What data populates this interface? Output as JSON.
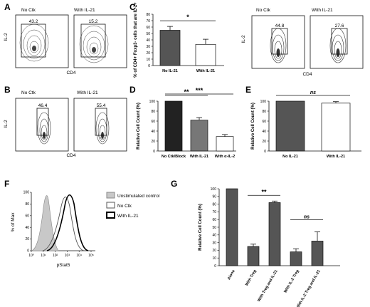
{
  "panels": {
    "A": {
      "letter": "A",
      "plots": [
        {
          "title": "No Ctk",
          "gate": "43.2"
        },
        {
          "title": "With IL-21",
          "gate": "15.2"
        }
      ],
      "xlabel": "CD4",
      "ylabel": "IL-2"
    },
    "B": {
      "letter": "B",
      "plots": [
        {
          "title": "No Ctk",
          "gate": "46.4"
        },
        {
          "title": "With IL-21",
          "gate": "55.4"
        }
      ],
      "xlabel": "CD4",
      "ylabel": "IL-2"
    },
    "C_flow": {
      "plots": [
        {
          "title": "No Ctk",
          "gate": "44.8"
        },
        {
          "title": "With IL-21",
          "gate": "27.6"
        }
      ],
      "xlabel": "CD4",
      "ylabel": "IL-2"
    },
    "F": {
      "letter": "F",
      "xlabel": "pStat5",
      "ylabel": "% of Max",
      "xticks": [
        "10⁰",
        "10¹",
        "10²",
        "10³",
        "10⁴",
        "10⁵"
      ],
      "yticks": [
        "0",
        "20",
        "40",
        "60",
        "80",
        "100"
      ],
      "legend": [
        {
          "label": "Unstimulated control",
          "fill": "#c8c8c8",
          "stroke": "#888888",
          "width": 1
        },
        {
          "label": "No Ctk",
          "fill": "#ffffff",
          "stroke": "#555555",
          "width": 1
        },
        {
          "label": "With IL-21",
          "fill": "#ffffff",
          "stroke": "#000000",
          "width": 2
        }
      ]
    }
  },
  "chart_data": [
    {
      "panel": "C",
      "type": "bar",
      "categories": [
        "No IL-21",
        "With IL-21"
      ],
      "values": [
        55,
        33
      ],
      "errors": [
        6,
        8
      ],
      "fills": [
        "#555555",
        "#ffffff"
      ],
      "ylabel": "% of CD4+ Foxp3- cells that are IL-2+",
      "ylim": [
        0,
        80
      ],
      "yticks": [
        0,
        10,
        20,
        30,
        40,
        50,
        60,
        70,
        80
      ],
      "sig": [
        {
          "from": 0,
          "to": 1,
          "label": "*"
        }
      ]
    },
    {
      "panel": "D",
      "type": "bar",
      "categories": [
        "No Ctk/Block",
        "With IL-21",
        "With α-IL-2"
      ],
      "values": [
        100,
        62,
        29
      ],
      "errors": [
        0,
        5,
        4
      ],
      "fills": [
        "#222222",
        "#777777",
        "#ffffff"
      ],
      "ylabel": "Relative Cell Count (%)",
      "ylim": [
        0,
        100
      ],
      "yticks": [
        0,
        20,
        40,
        60,
        80,
        100
      ],
      "sig": [
        {
          "from": 0,
          "to": 1,
          "label": "**"
        },
        {
          "from": 0,
          "to": 2,
          "label": "***"
        }
      ]
    },
    {
      "panel": "E",
      "type": "bar",
      "categories": [
        "No IL-21",
        "With IL-21"
      ],
      "values": [
        100,
        96
      ],
      "errors": [
        0,
        3
      ],
      "fills": [
        "#555555",
        "#ffffff"
      ],
      "ylabel": "Relative Cell Count (%)",
      "ylim": [
        0,
        100
      ],
      "yticks": [
        0,
        20,
        40,
        60,
        80,
        100
      ],
      "sig": [
        {
          "from": 0,
          "to": 1,
          "label": "ns"
        }
      ]
    },
    {
      "panel": "G",
      "type": "bar",
      "categories": [
        "Alone",
        "With Treg",
        "With Treg and IL-21",
        "With IL-2 Treg",
        "With IL-2 Treg and IL-21"
      ],
      "values": [
        100,
        25,
        82,
        18,
        32
      ],
      "errors": [
        0,
        3,
        2,
        4,
        12
      ],
      "fills": [
        "#555555",
        "#555555",
        "#555555",
        "#555555",
        "#555555"
      ],
      "ylabel": "Relative Cell Count (%)",
      "ylim": [
        0,
        100
      ],
      "yticks": [
        0,
        10,
        20,
        30,
        40,
        50,
        60,
        70,
        80,
        90,
        100
      ],
      "sig": [
        {
          "from": 1,
          "to": 2,
          "label": "**"
        },
        {
          "from": 3,
          "to": 4,
          "label": "ns"
        }
      ]
    }
  ]
}
